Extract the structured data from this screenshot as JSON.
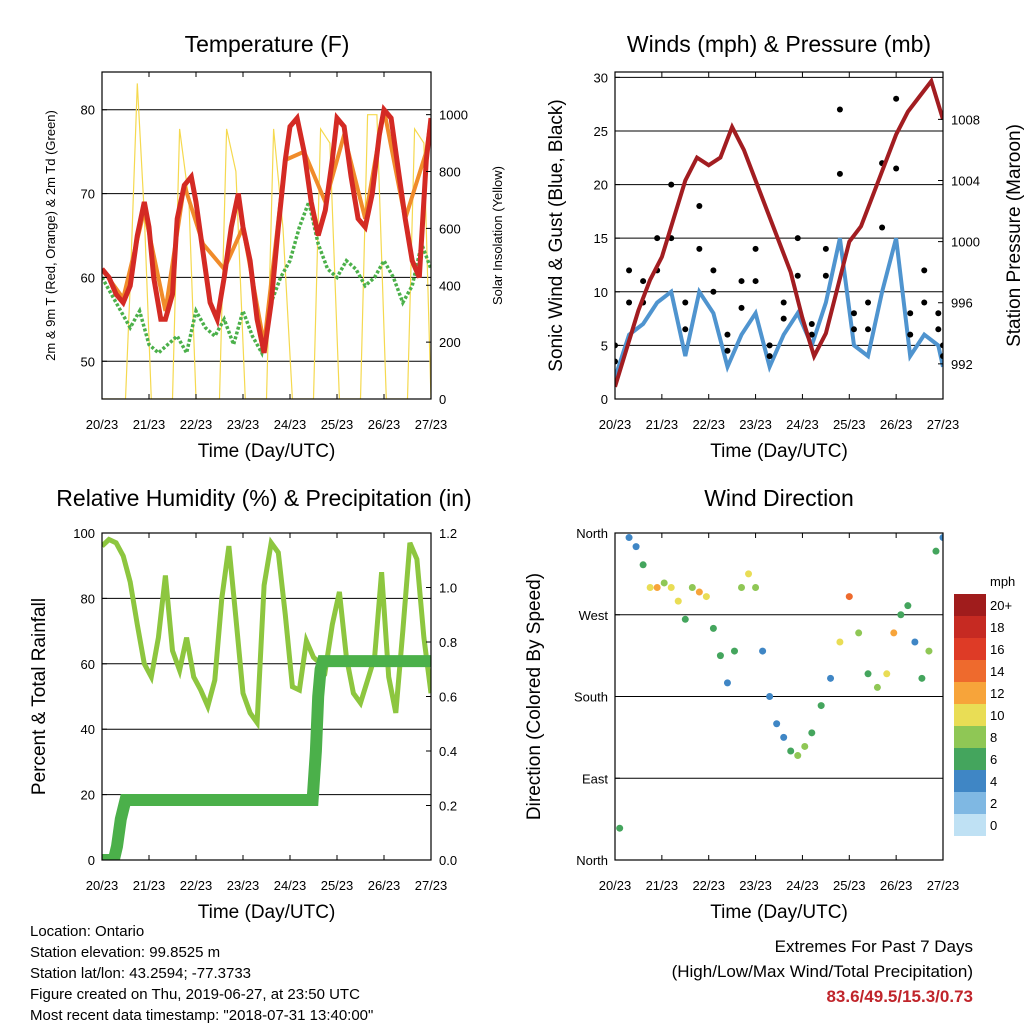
{
  "chart_data": [
    {
      "type": "line",
      "title": "Temperature (F)",
      "xlabel": "Time (Day/UTC)",
      "ylabel": "2m & 9m T (Red, Orange) & 2m Td (Green)",
      "ylabel_right": "Solar Insolation (Yellow)",
      "x_ticks": [
        "20/23",
        "21/23",
        "22/23",
        "23/23",
        "24/23",
        "25/23",
        "26/23",
        "27/23"
      ],
      "ylim": [
        45.5,
        84.5
      ],
      "yticks": [
        50,
        60,
        70,
        80
      ],
      "ylim_right": [
        0,
        1150
      ],
      "yticks_right": [
        0,
        200,
        400,
        600,
        800,
        1000
      ],
      "grid": "horizontal",
      "colors": {
        "t2m": "#d42a24",
        "t9m": "#f08b2a",
        "td2m": "#4bb04a",
        "solar": "#f5d94f"
      },
      "series": [
        {
          "name": "2m T",
          "axis": "left",
          "x": [
            0,
            0.15,
            0.3,
            0.45,
            0.6,
            0.75,
            0.9,
            1.0,
            1.1,
            1.25,
            1.35,
            1.5,
            1.6,
            1.75,
            1.9,
            2.0,
            2.15,
            2.3,
            2.45,
            2.6,
            2.75,
            2.9,
            3.0,
            3.15,
            3.3,
            3.45,
            3.6,
            3.75,
            3.9,
            4.0,
            4.15,
            4.3,
            4.45,
            4.6,
            4.75,
            4.9,
            5.0,
            5.15,
            5.3,
            5.45,
            5.6,
            5.75,
            5.9,
            6.0,
            6.15,
            6.3,
            6.45,
            6.6,
            6.75,
            6.9,
            7.0
          ],
          "y": [
            61,
            60,
            58,
            57,
            59,
            65,
            69,
            66,
            60,
            55,
            55,
            58,
            67,
            71,
            72,
            69,
            63,
            57,
            55,
            60,
            66,
            70,
            66,
            62,
            55,
            51,
            57,
            66,
            74,
            78,
            79,
            75,
            69,
            65,
            68,
            74,
            79,
            78,
            72,
            67,
            66,
            70,
            77,
            80,
            79,
            73,
            67,
            62,
            60,
            74,
            79
          ]
        },
        {
          "name": "9m T",
          "axis": "left",
          "x": [
            0,
            0.45,
            0.9,
            1.35,
            1.75,
            2.15,
            2.6,
            3.0,
            3.45,
            3.9,
            4.3,
            4.75,
            5.15,
            5.6,
            6.0,
            6.45,
            6.9,
            7.0
          ],
          "y": [
            61,
            57.5,
            68,
            56,
            71,
            64,
            61,
            66,
            52,
            74,
            75,
            69,
            77,
            67,
            80,
            67,
            75,
            79
          ]
        },
        {
          "name": "2m Td",
          "axis": "left",
          "x": [
            0,
            0.2,
            0.4,
            0.6,
            0.8,
            1.0,
            1.2,
            1.4,
            1.6,
            1.8,
            2.0,
            2.2,
            2.4,
            2.6,
            2.8,
            3.0,
            3.2,
            3.4,
            3.6,
            3.8,
            4.0,
            4.2,
            4.4,
            4.6,
            4.8,
            5.0,
            5.2,
            5.4,
            5.6,
            5.8,
            6.0,
            6.2,
            6.4,
            6.6,
            6.8,
            7.0
          ],
          "y": [
            60,
            58,
            56,
            54,
            56,
            52,
            51,
            52,
            53,
            51,
            56,
            54,
            53,
            55,
            52,
            56,
            53,
            51,
            57,
            60,
            62,
            66,
            69,
            64,
            61,
            60,
            62,
            61,
            59,
            60,
            62,
            60,
            57,
            59,
            64,
            61
          ]
        },
        {
          "name": "Solar Insolation",
          "axis": "right",
          "x": [
            0,
            0.5,
            0.6,
            0.75,
            0.9,
            1.05,
            1.3,
            1.5,
            1.65,
            1.85,
            2.0,
            2.3,
            2.5,
            2.65,
            2.85,
            3.05,
            3.3,
            3.5,
            3.65,
            3.85,
            4.05,
            4.3,
            4.5,
            4.65,
            4.85,
            5.05,
            5.3,
            5.5,
            5.65,
            5.85,
            6.05,
            6.3,
            6.5,
            6.65,
            6.85,
            7.0
          ],
          "y": [
            0,
            0,
            400,
            1110,
            650,
            0,
            0,
            0,
            950,
            700,
            0,
            0,
            0,
            950,
            800,
            0,
            0,
            0,
            950,
            600,
            0,
            0,
            0,
            950,
            900,
            0,
            0,
            0,
            1000,
            1000,
            0,
            0,
            0,
            950,
            900,
            0
          ]
        }
      ]
    },
    {
      "type": "scatter",
      "title": "Winds (mph) & Pressure (mb)",
      "xlabel": "Time (Day/UTC)",
      "ylabel": "Sonic Wind & Gust (Blue, Black)",
      "ylabel_right": "Station Pressure (Maroon)",
      "x_ticks": [
        "20/23",
        "21/23",
        "22/23",
        "23/23",
        "24/23",
        "25/23",
        "26/23",
        "27/23"
      ],
      "ylim": [
        0,
        30.5
      ],
      "yticks": [
        0,
        5,
        10,
        15,
        20,
        25,
        30
      ],
      "ylim_right": [
        989.7,
        1011.1
      ],
      "yticks_right": [
        992,
        996,
        1000,
        1004,
        1008
      ],
      "grid": "horizontal",
      "colors": {
        "wind": "#4f94cf",
        "gust": "#000000",
        "pressure": "#a21d21"
      },
      "series": [
        {
          "name": "Sonic Wind",
          "axis": "left",
          "x": [
            0,
            0.3,
            0.6,
            0.9,
            1.2,
            1.5,
            1.8,
            2.1,
            2.4,
            2.7,
            3.0,
            3.3,
            3.6,
            3.9,
            4.2,
            4.5,
            4.8,
            5.1,
            5.4,
            5.7,
            6.0,
            6.3,
            6.6,
            6.9,
            7.0
          ],
          "y": [
            2,
            6,
            7,
            9,
            10,
            4,
            10,
            8,
            3,
            6,
            8,
            3,
            6,
            8,
            5,
            9,
            15,
            5,
            4,
            10,
            15,
            4,
            6,
            5,
            3
          ]
        },
        {
          "name": "Gust",
          "axis": "left",
          "x": [
            0,
            0.3,
            0.6,
            0.9,
            1.2,
            1.5,
            1.8,
            2.1,
            2.4,
            2.7,
            3.0,
            3.3,
            3.6,
            3.9,
            4.2,
            4.5,
            4.8,
            5.1,
            5.4,
            5.7,
            6.0,
            6.3,
            6.6,
            6.9,
            7.0
          ],
          "y": [
            5,
            12,
            11,
            15,
            20,
            9,
            18,
            12,
            6,
            11,
            14,
            5,
            9,
            15,
            7,
            14,
            27,
            8,
            9,
            22,
            28,
            8,
            12,
            8,
            5
          ]
        },
        {
          "name": "Station Pressure",
          "axis": "right",
          "x": [
            0,
            0.25,
            0.5,
            0.75,
            1.0,
            1.25,
            1.5,
            1.75,
            2.0,
            2.25,
            2.5,
            2.75,
            3.0,
            3.25,
            3.5,
            3.75,
            4.0,
            4.25,
            4.5,
            4.75,
            5.0,
            5.25,
            5.5,
            5.75,
            6.0,
            6.25,
            6.5,
            6.75,
            6.9,
            7.0
          ],
          "y": [
            990.5,
            993,
            995.5,
            997.5,
            999,
            1001.5,
            1004,
            1005.5,
            1005,
            1005.5,
            1007.5,
            1006,
            1004,
            1002,
            1000,
            998,
            995,
            992.5,
            994,
            997,
            1000,
            1001,
            1003,
            1005,
            1007,
            1008.5,
            1009.5,
            1010.5,
            1009,
            1008
          ]
        }
      ]
    },
    {
      "type": "line",
      "title": "Relative Humidity (%) & Precipitation (in)",
      "xlabel": "Time (Day/UTC)",
      "ylabel": "Percent & Total Rainfall",
      "x_ticks": [
        "20/23",
        "21/23",
        "22/23",
        "23/23",
        "24/23",
        "25/23",
        "26/23",
        "27/23"
      ],
      "ylim": [
        0,
        100
      ],
      "yticks": [
        0,
        20,
        40,
        60,
        80,
        100
      ],
      "ylim_right": [
        0,
        1.2
      ],
      "yticks_right": [
        0.0,
        0.2,
        0.4,
        0.6,
        0.8,
        1.0,
        1.2
      ],
      "grid": "horizontal",
      "colors": {
        "rh": "#8dc63f",
        "precip": "#4bb04a"
      },
      "series": [
        {
          "name": "Relative Humidity",
          "axis": "left",
          "x": [
            0,
            0.15,
            0.3,
            0.45,
            0.6,
            0.75,
            0.9,
            1.05,
            1.2,
            1.35,
            1.5,
            1.65,
            1.8,
            1.95,
            2.1,
            2.25,
            2.4,
            2.55,
            2.7,
            2.85,
            3.0,
            3.15,
            3.3,
            3.45,
            3.6,
            3.75,
            3.9,
            4.05,
            4.2,
            4.35,
            4.5,
            4.65,
            4.75,
            4.9,
            5.05,
            5.2,
            5.35,
            5.5,
            5.65,
            5.8,
            5.95,
            6.1,
            6.25,
            6.4,
            6.55,
            6.7,
            6.85,
            7.0
          ],
          "y": [
            96,
            98,
            97,
            93,
            85,
            72,
            60,
            56,
            68,
            87,
            64,
            58,
            68,
            56,
            52,
            47,
            55,
            80,
            96,
            74,
            51,
            45,
            42,
            84,
            97,
            94,
            75,
            53,
            52,
            67,
            62,
            60,
            58,
            72,
            82,
            62,
            51,
            48,
            55,
            62,
            88,
            56,
            45,
            70,
            97,
            92,
            68,
            51
          ]
        },
        {
          "name": "Total Rainfall",
          "axis": "right",
          "x": [
            0,
            0.25,
            0.32,
            0.4,
            0.5,
            1.0,
            2.0,
            3.0,
            4.0,
            4.48,
            4.55,
            4.6,
            4.65,
            4.7,
            5.0,
            6.0,
            7.0
          ],
          "y": [
            0,
            0,
            0.05,
            0.15,
            0.22,
            0.22,
            0.22,
            0.22,
            0.22,
            0.22,
            0.4,
            0.6,
            0.7,
            0.73,
            0.73,
            0.73,
            0.73
          ]
        }
      ]
    },
    {
      "type": "scatter",
      "title": "Wind Direction",
      "xlabel": "Time (Day/UTC)",
      "ylabel": "Direction (Colored By Speed)",
      "x_ticks": [
        "20/23",
        "21/23",
        "22/23",
        "23/23",
        "24/23",
        "25/23",
        "26/23",
        "27/23"
      ],
      "ylim": [
        0,
        360
      ],
      "y_tick_labels": [
        "North",
        "East",
        "South",
        "West",
        "North"
      ],
      "yticks": [
        0,
        90,
        180,
        270,
        360
      ],
      "grid": "horizontal",
      "colorbar": {
        "title": "mph",
        "labels": [
          "20+",
          "18",
          "16",
          "14",
          "12",
          "10",
          "8",
          "6",
          "4",
          "2",
          "0"
        ],
        "colors": [
          "#a01c1c",
          "#c62a22",
          "#de3b26",
          "#ee6a2d",
          "#f7a43a",
          "#e9dd55",
          "#8fc755",
          "#44a55d",
          "#3f86c5",
          "#7fb8e3",
          "#bfe1f4"
        ]
      },
      "series": [
        {
          "name": "Direction",
          "x": [
            0.1,
            0.3,
            0.45,
            0.6,
            0.75,
            0.9,
            1.05,
            1.2,
            1.35,
            1.5,
            1.65,
            1.8,
            1.95,
            2.1,
            2.25,
            2.4,
            2.55,
            2.7,
            2.85,
            3.0,
            3.15,
            3.3,
            3.45,
            3.6,
            3.75,
            3.9,
            4.05,
            4.2,
            4.4,
            4.6,
            4.8,
            5.0,
            5.2,
            5.4,
            5.6,
            5.8,
            5.95,
            6.1,
            6.25,
            6.4,
            6.55,
            6.7,
            6.85,
            7.0
          ],
          "y": [
            35,
            355,
            345,
            325,
            300,
            300,
            305,
            300,
            285,
            265,
            300,
            295,
            290,
            255,
            225,
            195,
            230,
            300,
            315,
            300,
            230,
            180,
            150,
            135,
            120,
            115,
            125,
            140,
            170,
            200,
            240,
            290,
            250,
            205,
            190,
            205,
            250,
            270,
            280,
            240,
            200,
            230,
            340,
            355
          ],
          "speed": [
            5,
            3,
            4,
            6,
            10,
            12,
            8,
            10,
            9,
            5,
            7,
            11,
            9,
            6,
            5,
            4,
            5,
            8,
            9,
            7,
            4,
            3,
            3,
            4,
            6,
            8,
            7,
            5,
            6,
            4,
            10,
            14,
            8,
            5,
            7,
            9,
            12,
            6,
            5,
            4,
            6,
            8,
            5,
            3
          ]
        }
      ]
    }
  ],
  "footer": {
    "location": "Location: Ontario",
    "elevation": "Station elevation: 99.8525 m",
    "latlon": "Station lat/lon: 43.2594; -77.3733",
    "created": "Figure created on Thu, 2019-06-27, at 23:50 UTC",
    "recent": "Most recent data timestamp: \"2018-07-31 13:40:00\""
  },
  "extremes": {
    "title": "Extremes For Past 7 Days",
    "subtitle": "(High/Low/Max Wind/Total Precipitation)",
    "values": "83.6/49.5/15.3/0.73"
  }
}
